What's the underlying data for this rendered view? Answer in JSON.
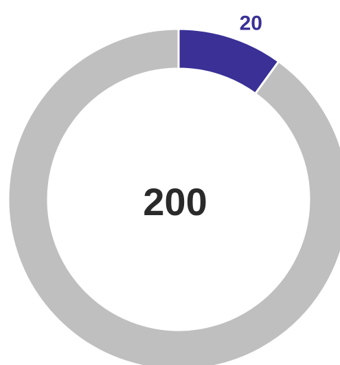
{
  "chart_data": {
    "type": "donut",
    "total": 200,
    "categories": [
      null,
      null
    ],
    "values": [
      20,
      180
    ],
    "value_labels": [
      "20",
      null
    ],
    "colors": [
      "#3a3096",
      "#bfbfbf"
    ],
    "label_color": "#3a3096"
  }
}
